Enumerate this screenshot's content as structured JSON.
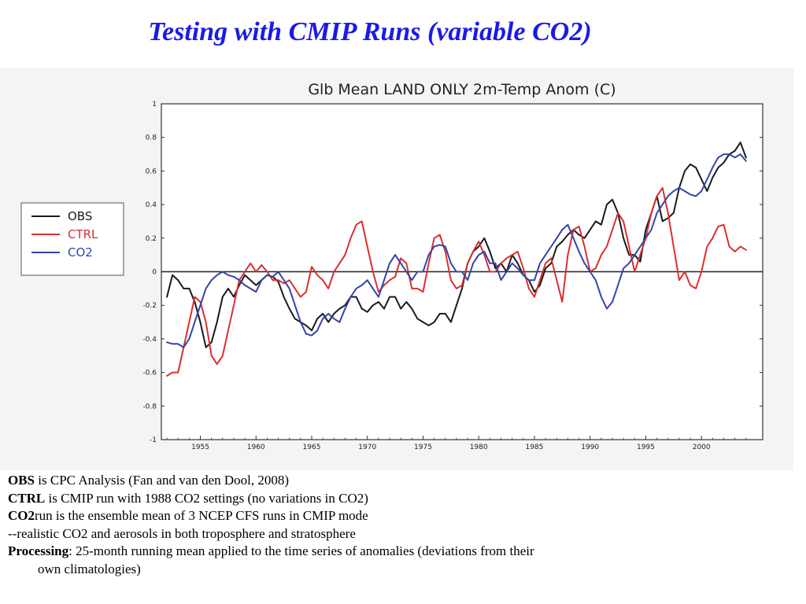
{
  "slide": {
    "title": "Testing with CMIP Runs (variable CO2)"
  },
  "colors": {
    "title": "#1a1ae6",
    "obs": "#1a1a1a",
    "ctrl": "#d93030",
    "co2": "#3344aa"
  },
  "chart_data": {
    "type": "line",
    "title": "Glb Mean LAND ONLY 2m-Temp Anom (C)",
    "xlabel": "",
    "ylabel": "",
    "xlim": [
      1951.5,
      2005.5
    ],
    "ylim": [
      -1,
      1
    ],
    "xticks": [
      1955,
      1960,
      1965,
      1970,
      1975,
      1980,
      1985,
      1990,
      1995,
      2000
    ],
    "xtick_labels": [
      "1955",
      "1960",
      "1965",
      "1970",
      "1975",
      "1980",
      "1985",
      "1990",
      "1995",
      "2000"
    ],
    "yticks": [
      -1,
      -0.8,
      -0.6,
      -0.4,
      -0.2,
      0,
      0.2,
      0.4,
      0.6,
      0.8,
      1
    ],
    "ytick_labels": [
      "-1",
      "-0.8",
      "-0.6",
      "-0.4",
      "-0.2",
      "0",
      "0.2",
      "0.4",
      "0.6",
      "0.8",
      "1"
    ],
    "grid": false,
    "zero_line": true,
    "legend_position": "left, outside plot",
    "series": [
      {
        "name": "OBS",
        "color": "#1a1a1a",
        "x": [
          1952.0,
          1952.5,
          1953.0,
          1953.5,
          1954.0,
          1954.5,
          1955.0,
          1955.5,
          1956.0,
          1956.5,
          1957.0,
          1957.5,
          1958.0,
          1958.5,
          1959.0,
          1959.5,
          1960.0,
          1960.5,
          1961.0,
          1961.5,
          1962.0,
          1962.5,
          1963.0,
          1963.5,
          1964.0,
          1964.5,
          1965.0,
          1965.5,
          1966.0,
          1966.5,
          1967.0,
          1967.5,
          1968.0,
          1968.5,
          1969.0,
          1969.5,
          1970.0,
          1970.5,
          1971.0,
          1971.5,
          1972.0,
          1972.5,
          1973.0,
          1973.5,
          1974.0,
          1974.5,
          1975.0,
          1975.5,
          1976.0,
          1976.5,
          1977.0,
          1977.5,
          1978.0,
          1978.5,
          1979.0,
          1979.5,
          1980.0,
          1980.5,
          1981.0,
          1981.5,
          1982.0,
          1982.5,
          1983.0,
          1983.5,
          1984.0,
          1984.5,
          1985.0,
          1985.5,
          1986.0,
          1986.5,
          1987.0,
          1987.5,
          1988.0,
          1988.5,
          1989.0,
          1989.5,
          1990.0,
          1990.5,
          1991.0,
          1991.5,
          1992.0,
          1992.5,
          1993.0,
          1993.5,
          1994.0,
          1994.5,
          1995.0,
          1995.5,
          1996.0,
          1996.5,
          1997.0,
          1997.5,
          1998.0,
          1998.5,
          1999.0,
          1999.5,
          2000.0,
          2000.5,
          2001.0,
          2001.5,
          2002.0,
          2002.5,
          2003.0,
          2003.5,
          2004.0
        ],
        "y": [
          -0.15,
          -0.02,
          -0.05,
          -0.1,
          -0.1,
          -0.18,
          -0.3,
          -0.45,
          -0.42,
          -0.3,
          -0.15,
          -0.1,
          -0.15,
          -0.08,
          -0.02,
          -0.05,
          -0.08,
          -0.05,
          -0.02,
          -0.03,
          -0.06,
          -0.15,
          -0.22,
          -0.28,
          -0.3,
          -0.32,
          -0.35,
          -0.28,
          -0.25,
          -0.3,
          -0.25,
          -0.22,
          -0.2,
          -0.15,
          -0.15,
          -0.22,
          -0.24,
          -0.2,
          -0.18,
          -0.22,
          -0.15,
          -0.15,
          -0.22,
          -0.18,
          -0.22,
          -0.28,
          -0.3,
          -0.32,
          -0.3,
          -0.25,
          -0.25,
          -0.3,
          -0.2,
          -0.1,
          0.05,
          0.12,
          0.15,
          0.2,
          0.12,
          0.02,
          0.05,
          0.0,
          0.1,
          0.05,
          -0.02,
          -0.05,
          -0.12,
          -0.08,
          0.02,
          0.05,
          0.15,
          0.18,
          0.22,
          0.25,
          0.22,
          0.2,
          0.25,
          0.3,
          0.28,
          0.4,
          0.43,
          0.35,
          0.2,
          0.1,
          0.1,
          0.06,
          0.25,
          0.35,
          0.45,
          0.3,
          0.32,
          0.35,
          0.5,
          0.6,
          0.64,
          0.62,
          0.55,
          0.48,
          0.56,
          0.62,
          0.65,
          0.7,
          0.72,
          0.77,
          0.68
        ]
      },
      {
        "name": "CTRL",
        "color": "#d93030",
        "x": [
          1952.0,
          1952.5,
          1953.0,
          1953.5,
          1954.0,
          1954.5,
          1955.0,
          1955.5,
          1956.0,
          1956.5,
          1957.0,
          1957.5,
          1958.0,
          1958.5,
          1959.0,
          1959.5,
          1960.0,
          1960.5,
          1961.0,
          1961.5,
          1962.0,
          1962.5,
          1963.0,
          1963.5,
          1964.0,
          1964.5,
          1965.0,
          1965.5,
          1966.0,
          1966.5,
          1967.0,
          1967.5,
          1968.0,
          1968.5,
          1969.0,
          1969.5,
          1970.0,
          1970.5,
          1971.0,
          1971.5,
          1972.0,
          1972.5,
          1973.0,
          1973.5,
          1974.0,
          1974.5,
          1975.0,
          1975.5,
          1976.0,
          1976.5,
          1977.0,
          1977.5,
          1978.0,
          1978.5,
          1979.0,
          1979.5,
          1980.0,
          1980.5,
          1981.0,
          1981.5,
          1982.0,
          1982.5,
          1983.0,
          1983.5,
          1984.0,
          1984.5,
          1985.0,
          1985.5,
          1986.0,
          1986.5,
          1987.0,
          1987.5,
          1988.0,
          1988.5,
          1989.0,
          1989.5,
          1990.0,
          1990.5,
          1991.0,
          1991.5,
          1992.0,
          1992.5,
          1993.0,
          1993.5,
          1994.0,
          1994.5,
          1995.0,
          1995.5,
          1996.0,
          1996.5,
          1997.0,
          1997.5,
          1998.0,
          1998.5,
          1999.0,
          1999.5,
          2000.0,
          2000.5,
          2001.0,
          2001.5,
          2002.0,
          2002.5,
          2003.0,
          2003.5,
          2004.0
        ],
        "y": [
          -0.62,
          -0.6,
          -0.6,
          -0.45,
          -0.3,
          -0.15,
          -0.18,
          -0.3,
          -0.5,
          -0.55,
          -0.5,
          -0.35,
          -0.2,
          -0.05,
          0.0,
          0.05,
          0.0,
          0.04,
          0.0,
          -0.05,
          -0.05,
          -0.07,
          -0.05,
          -0.1,
          -0.15,
          -0.12,
          0.03,
          -0.02,
          -0.05,
          -0.1,
          0.0,
          0.05,
          0.1,
          0.2,
          0.28,
          0.3,
          0.15,
          0.0,
          -0.12,
          -0.08,
          -0.05,
          -0.03,
          0.08,
          0.05,
          -0.1,
          -0.1,
          -0.12,
          0.05,
          0.2,
          0.22,
          0.12,
          -0.05,
          -0.1,
          -0.08,
          0.05,
          0.12,
          0.18,
          0.1,
          0.0,
          0.0,
          0.05,
          0.08,
          0.1,
          0.12,
          0.02,
          -0.1,
          -0.15,
          -0.05,
          0.05,
          0.08,
          -0.05,
          -0.18,
          0.1,
          0.25,
          0.27,
          0.15,
          0.0,
          0.02,
          0.1,
          0.15,
          0.25,
          0.35,
          0.3,
          0.15,
          0.0,
          0.1,
          0.2,
          0.35,
          0.45,
          0.5,
          0.35,
          0.15,
          -0.05,
          0.0,
          -0.08,
          -0.1,
          0.0,
          0.15,
          0.2,
          0.27,
          0.28,
          0.15,
          0.12,
          0.15,
          0.13
        ]
      },
      {
        "name": "CO2",
        "color": "#3344aa",
        "x": [
          1952.0,
          1952.5,
          1953.0,
          1953.5,
          1954.0,
          1954.5,
          1955.0,
          1955.5,
          1956.0,
          1956.5,
          1957.0,
          1957.5,
          1958.0,
          1958.5,
          1959.0,
          1959.5,
          1960.0,
          1960.5,
          1961.0,
          1961.5,
          1962.0,
          1962.5,
          1963.0,
          1963.5,
          1964.0,
          1964.5,
          1965.0,
          1965.5,
          1966.0,
          1966.5,
          1967.0,
          1967.5,
          1968.0,
          1968.5,
          1969.0,
          1969.5,
          1970.0,
          1970.5,
          1971.0,
          1971.5,
          1972.0,
          1972.5,
          1973.0,
          1973.5,
          1974.0,
          1974.5,
          1975.0,
          1975.5,
          1976.0,
          1976.5,
          1977.0,
          1977.5,
          1978.0,
          1978.5,
          1979.0,
          1979.5,
          1980.0,
          1980.5,
          1981.0,
          1981.5,
          1982.0,
          1982.5,
          1983.0,
          1983.5,
          1984.0,
          1984.5,
          1985.0,
          1985.5,
          1986.0,
          1986.5,
          1987.0,
          1987.5,
          1988.0,
          1988.5,
          1989.0,
          1989.5,
          1990.0,
          1990.5,
          1991.0,
          1991.5,
          1992.0,
          1992.5,
          1993.0,
          1993.5,
          1994.0,
          1994.5,
          1995.0,
          1995.5,
          1996.0,
          1996.5,
          1997.0,
          1997.5,
          1998.0,
          1998.5,
          1999.0,
          1999.5,
          2000.0,
          2000.5,
          2001.0,
          2001.5,
          2002.0,
          2002.5,
          2003.0,
          2003.5,
          2004.0
        ],
        "y": [
          -0.42,
          -0.43,
          -0.43,
          -0.45,
          -0.4,
          -0.3,
          -0.2,
          -0.1,
          -0.05,
          -0.02,
          0.0,
          -0.02,
          -0.03,
          -0.05,
          -0.08,
          -0.1,
          -0.12,
          -0.05,
          -0.02,
          -0.03,
          0.0,
          -0.05,
          -0.1,
          -0.2,
          -0.3,
          -0.37,
          -0.38,
          -0.35,
          -0.28,
          -0.25,
          -0.28,
          -0.3,
          -0.22,
          -0.15,
          -0.1,
          -0.08,
          -0.05,
          -0.1,
          -0.15,
          -0.05,
          0.05,
          0.1,
          0.05,
          0.0,
          -0.05,
          0.0,
          0.0,
          0.1,
          0.15,
          0.16,
          0.15,
          0.05,
          0.0,
          0.0,
          -0.05,
          0.05,
          0.1,
          0.12,
          0.05,
          0.05,
          -0.05,
          0.0,
          0.05,
          0.02,
          -0.02,
          -0.05,
          -0.05,
          0.05,
          0.1,
          0.15,
          0.2,
          0.25,
          0.28,
          0.2,
          0.12,
          0.05,
          0.0,
          -0.05,
          -0.15,
          -0.22,
          -0.18,
          -0.08,
          0.02,
          0.05,
          0.1,
          0.15,
          0.2,
          0.25,
          0.35,
          0.4,
          0.45,
          0.48,
          0.5,
          0.48,
          0.46,
          0.45,
          0.48,
          0.55,
          0.62,
          0.68,
          0.7,
          0.7,
          0.68,
          0.7,
          0.66
        ]
      }
    ]
  },
  "legend": {
    "items": [
      {
        "label": "OBS",
        "color": "#1a1a1a"
      },
      {
        "label": "CTRL",
        "color": "#d93030"
      },
      {
        "label": "CO2",
        "color": "#3344aa"
      }
    ]
  },
  "notes": {
    "obs_term": "OBS",
    "obs_text": " is CPC Analysis (Fan and van den Dool, 2008)",
    "ctrl_term": "CTRL",
    "ctrl_text": " is CMIP run with 1988 CO2 settings (no variations in CO2)",
    "co2_term": "CO2",
    "co2_text": "run is the ensemble mean of 3 NCEP CFS runs in CMIP mode",
    "realistic_text": "--realistic CO2 and aerosols in both troposphere and stratosphere",
    "processing_term": "Processing",
    "processing_text": ": 25-month running mean applied to the time series of anomalies (deviations from their",
    "processing_text_2": "own climatologies)"
  }
}
